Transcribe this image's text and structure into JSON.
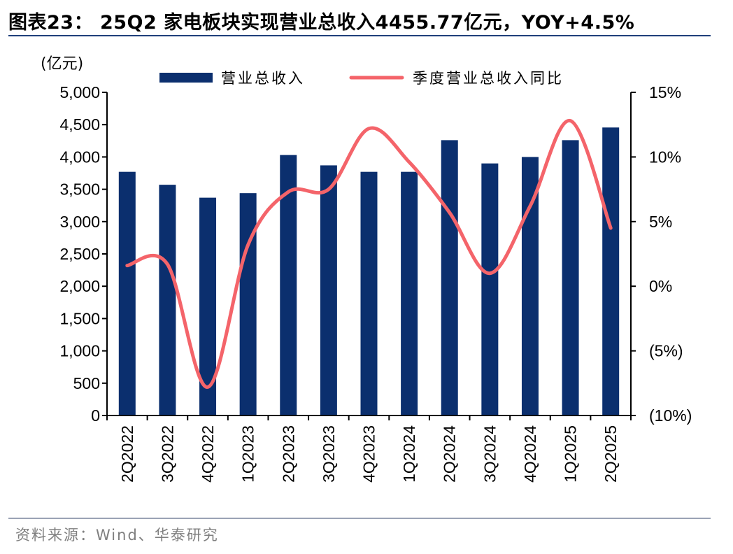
{
  "header": {
    "title": "图表23： 25Q2 家电板块实现营业总收入4455.77亿元，YOY+4.5%"
  },
  "footer": {
    "source": "资料来源：Wind、华泰研究"
  },
  "colors": {
    "bar": "#0b2f6e",
    "line": "#f4646a"
  },
  "chart_data": {
    "type": "bar",
    "combo_line_series": "季度营业总收入同比",
    "categories": [
      "2Q2022",
      "3Q2022",
      "4Q2022",
      "1Q2023",
      "2Q2023",
      "3Q2023",
      "4Q2023",
      "1Q2024",
      "2Q2024",
      "3Q2024",
      "4Q2024",
      "1Q2025",
      "2Q2025"
    ],
    "series": [
      {
        "name": "营业总收入",
        "type": "bar",
        "axis": "left",
        "values": [
          3770,
          3570,
          3370,
          3440,
          4030,
          3870,
          3770,
          3770,
          4260,
          3900,
          4000,
          4260,
          4456
        ]
      },
      {
        "name": "季度营业总收入同比",
        "type": "line",
        "axis": "right",
        "values": [
          1.6,
          1.7,
          -7.8,
          3.2,
          7.3,
          7.5,
          12.2,
          9.6,
          5.7,
          1.0,
          6.2,
          12.8,
          4.5
        ]
      }
    ],
    "ylabel": "(亿元)",
    "ylim": [
      0,
      5000
    ],
    "yticks": [
      "5,000",
      "4,500",
      "4,000",
      "3,500",
      "3,000",
      "2,500",
      "2,000",
      "1,500",
      "1,000",
      "500",
      "0"
    ],
    "y2lim": [
      -10,
      15
    ],
    "y2ticks": [
      "15%",
      "10%",
      "5%",
      "0%",
      "(5%)",
      "(10%)"
    ],
    "legend": [
      "营业总收入",
      "季度营业总收入同比"
    ],
    "legend_position": "top",
    "grid": false
  }
}
